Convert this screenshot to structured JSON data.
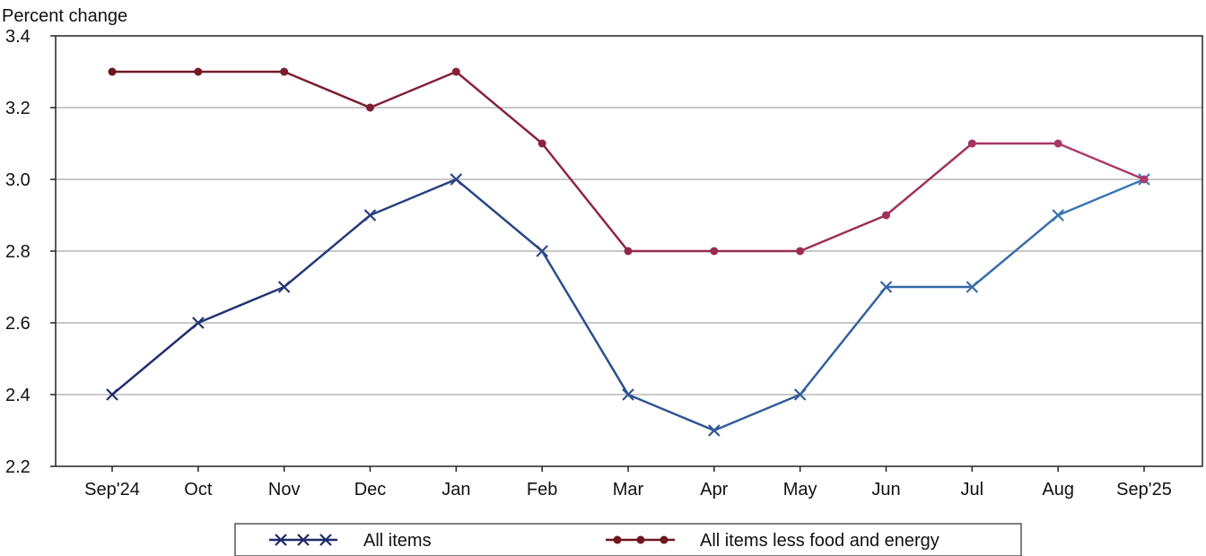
{
  "chart_data": {
    "type": "line",
    "ylabel": "Percent change",
    "categories": [
      "Sep'24",
      "Oct",
      "Nov",
      "Dec",
      "Jan",
      "Feb",
      "Mar",
      "Apr",
      "May",
      "Jun",
      "Jul",
      "Aug",
      "Sep'25"
    ],
    "ylim": [
      2.2,
      3.4
    ],
    "yticks": [
      "2.2",
      "2.4",
      "2.6",
      "2.8",
      "3.0",
      "3.2",
      "3.4"
    ],
    "grid": true,
    "legend_position": "bottom",
    "series": [
      {
        "name": "All items",
        "marker": "x",
        "color_start": "#1f2a6b",
        "color_end": "#3b78b5",
        "values": [
          2.4,
          2.6,
          2.7,
          2.9,
          3.0,
          2.8,
          2.4,
          2.3,
          2.4,
          2.7,
          2.7,
          2.9,
          3.0
        ]
      },
      {
        "name": "All items less food and energy",
        "marker": "circle",
        "color_start": "#6e1620",
        "color_end": "#b03a6e",
        "values": [
          3.3,
          3.3,
          3.3,
          3.2,
          3.3,
          3.1,
          2.8,
          2.8,
          2.8,
          2.9,
          3.1,
          3.1,
          3.0
        ]
      }
    ]
  }
}
